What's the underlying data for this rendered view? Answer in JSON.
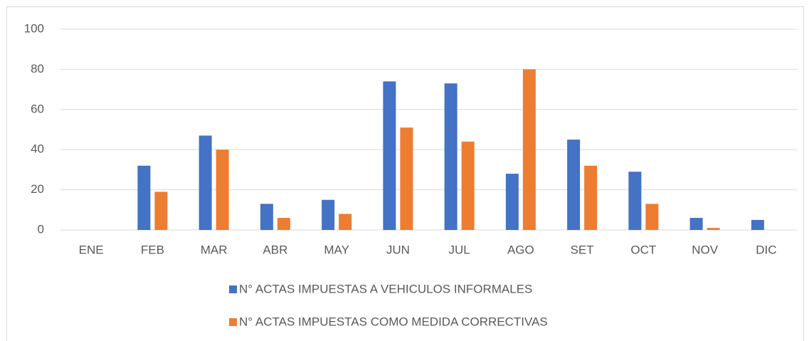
{
  "chart_data": {
    "type": "bar",
    "categories": [
      "ENE",
      "FEB",
      "MAR",
      "ABR",
      "MAY",
      "JUN",
      "JUL",
      "AGO",
      "SET",
      "OCT",
      "NOV",
      "DIC"
    ],
    "series": [
      {
        "name": "N° ACTAS IMPUESTAS A VEHICULOS INFORMALES",
        "color": "#4472c4",
        "values": [
          0,
          32,
          47,
          13,
          15,
          74,
          73,
          28,
          45,
          29,
          6,
          5
        ]
      },
      {
        "name": "N° ACTAS IMPUESTAS COMO MEDIDA CORRECTIVAS",
        "color": "#ed7d31",
        "values": [
          0,
          19,
          40,
          6,
          8,
          51,
          44,
          80,
          32,
          13,
          1,
          0
        ]
      }
    ],
    "ylim": [
      0,
      100
    ],
    "yticks": [
      0,
      20,
      40,
      60,
      80,
      100
    ],
    "grid": true,
    "legend": "bottom"
  }
}
